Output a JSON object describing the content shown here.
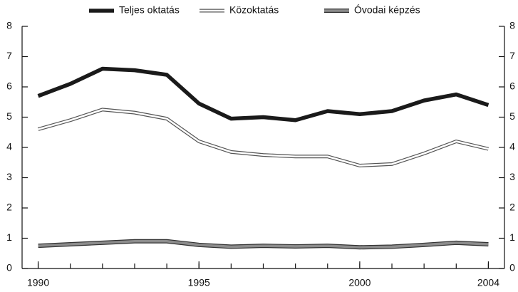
{
  "chart_data": {
    "type": "line",
    "x": [
      1990,
      1991,
      1992,
      1993,
      1994,
      1995,
      1996,
      1997,
      1998,
      1999,
      2000,
      2001,
      2002,
      2003,
      2004
    ],
    "series": [
      {
        "name": "Teljes oktatás",
        "color": "#1a1a1a",
        "values": [
          5.7,
          6.1,
          6.6,
          6.55,
          6.4,
          5.45,
          4.95,
          5.0,
          4.9,
          5.2,
          5.1,
          5.2,
          5.55,
          5.75,
          5.4
        ]
      },
      {
        "name": "Közoktatás",
        "color": "#ffffff",
        "values": [
          4.6,
          4.9,
          5.25,
          5.15,
          4.95,
          4.2,
          3.85,
          3.75,
          3.7,
          3.7,
          3.4,
          3.45,
          3.8,
          4.2,
          3.95
        ]
      },
      {
        "name": "Óvodai képzés",
        "color": "#8c8c8c",
        "values": [
          0.75,
          0.8,
          0.85,
          0.9,
          0.9,
          0.78,
          0.72,
          0.75,
          0.73,
          0.75,
          0.7,
          0.72,
          0.78,
          0.85,
          0.8
        ]
      }
    ],
    "xlim": [
      1989.5,
      2004.5
    ],
    "xticks": [
      1990,
      1995,
      2000,
      2004
    ],
    "ylim": [
      0,
      8
    ],
    "yticks": [
      0,
      1,
      2,
      3,
      4,
      5,
      6,
      7,
      8
    ],
    "y2lim": [
      0,
      8
    ],
    "y2ticks": [
      0,
      1,
      2,
      3,
      4,
      5,
      6,
      7,
      8
    ],
    "legend": "top"
  }
}
